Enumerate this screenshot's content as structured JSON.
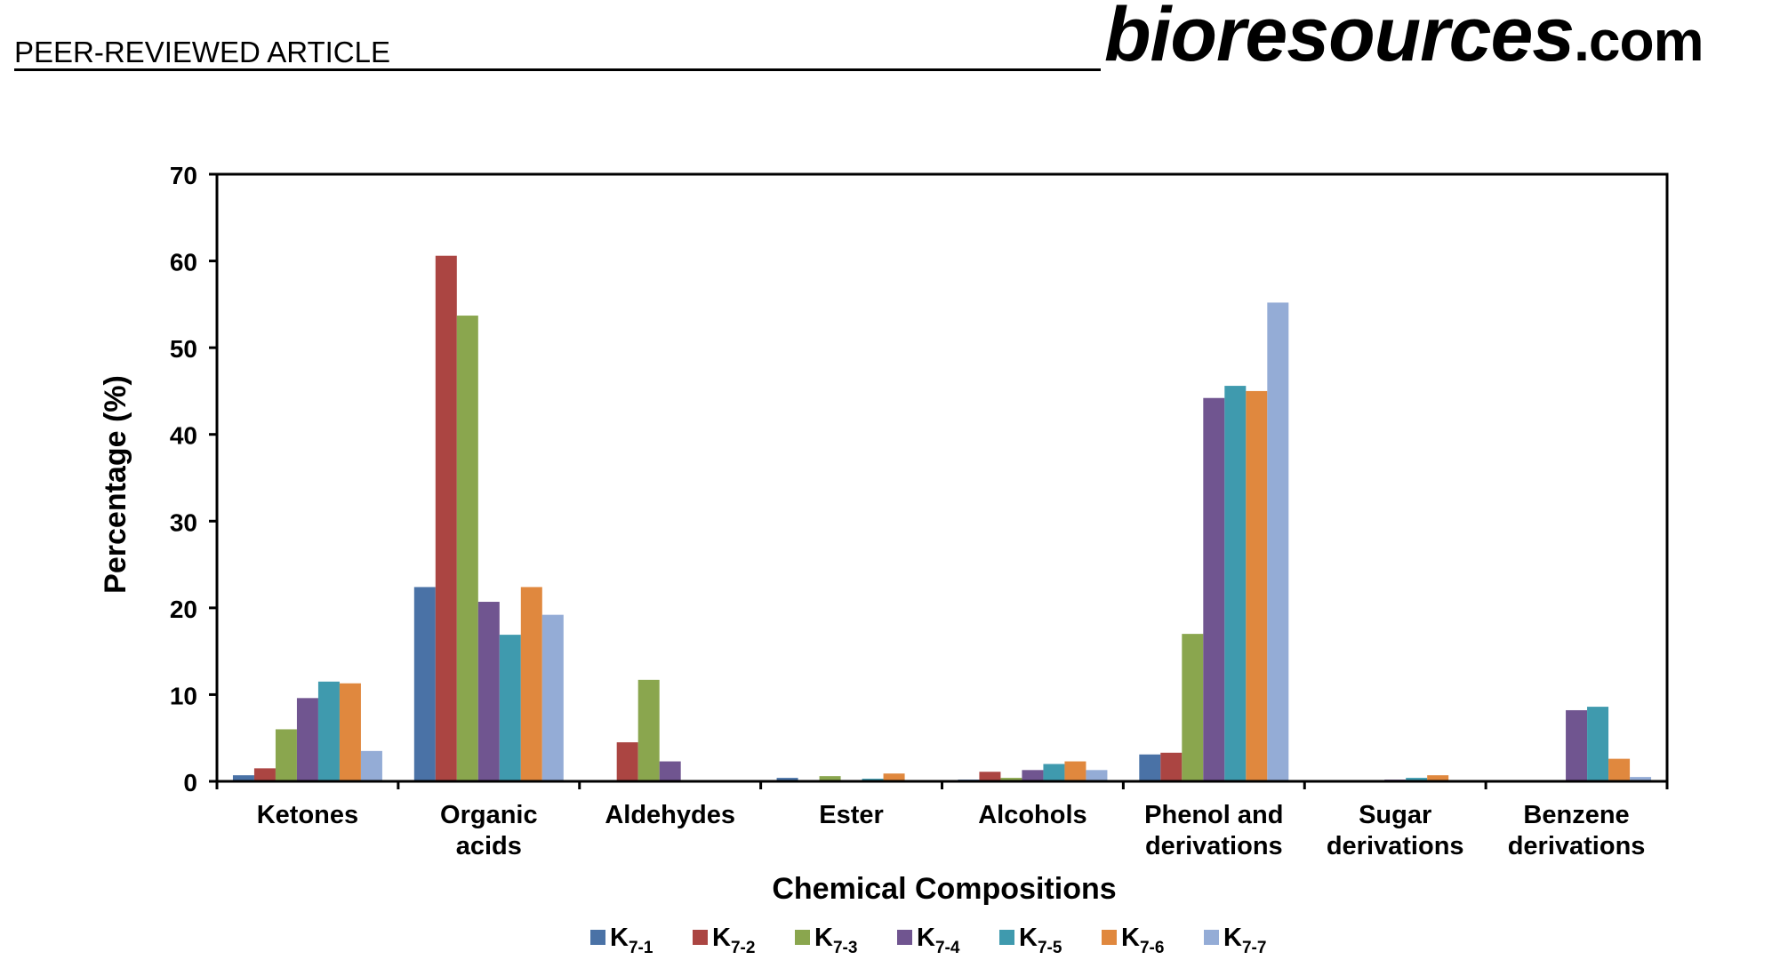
{
  "header": {
    "article_label": "PEER-REVIEWED ARTICLE",
    "brand_main": "bioresources",
    "brand_domain": ".com"
  },
  "chart_data": {
    "type": "bar",
    "title": "",
    "xlabel": "Chemical Compositions",
    "ylabel": "Percentage (%)",
    "ylim": [
      0,
      70
    ],
    "yticks": [
      0,
      10,
      20,
      30,
      40,
      50,
      60,
      70
    ],
    "grid": false,
    "legend_position": "bottom",
    "categories": [
      [
        "Ketones"
      ],
      [
        "Organic",
        "acids"
      ],
      [
        "Aldehydes"
      ],
      [
        "Ester"
      ],
      [
        "Alcohols"
      ],
      [
        "Phenol and",
        "derivations"
      ],
      [
        "Sugar",
        "derivations"
      ],
      [
        "Benzene",
        "derivations"
      ]
    ],
    "series": [
      {
        "name": "K",
        "sub": "7-1",
        "color": "#4a72a6",
        "values": [
          0.7,
          22.4,
          0,
          0.4,
          0.2,
          3.1,
          0,
          0
        ]
      },
      {
        "name": "K",
        "sub": "7-2",
        "color": "#ab4542",
        "values": [
          1.5,
          60.6,
          4.5,
          0.1,
          1.1,
          3.3,
          0,
          0
        ]
      },
      {
        "name": "K",
        "sub": "7-3",
        "color": "#8aa64e",
        "values": [
          6.0,
          53.7,
          11.7,
          0.6,
          0.4,
          17.0,
          0,
          0
        ]
      },
      {
        "name": "K",
        "sub": "7-4",
        "color": "#705590",
        "values": [
          9.6,
          20.7,
          2.3,
          0,
          1.3,
          44.2,
          0.2,
          8.2
        ]
      },
      {
        "name": "K",
        "sub": "7-5",
        "color": "#3f9aae",
        "values": [
          11.5,
          16.9,
          0,
          0.3,
          2.0,
          45.6,
          0.4,
          8.6
        ]
      },
      {
        "name": "K",
        "sub": "7-6",
        "color": "#e0883e",
        "values": [
          11.3,
          22.4,
          0,
          0.9,
          2.3,
          45.0,
          0.7,
          2.6
        ]
      },
      {
        "name": "K",
        "sub": "7-7",
        "color": "#94acd6",
        "values": [
          3.5,
          19.2,
          0,
          0,
          1.3,
          55.2,
          0,
          0.5
        ]
      }
    ]
  }
}
